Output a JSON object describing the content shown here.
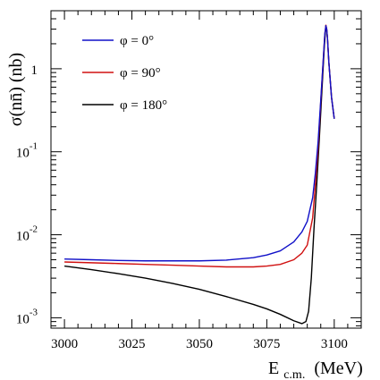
{
  "chart_data": {
    "type": "line",
    "xlabel": "E",
    "xlabel_sub": "c.m.",
    "xlabel_unit": "(MeV)",
    "ylabel": "σ(nn̄) (nb)",
    "xlim": [
      2995,
      3110
    ],
    "ylim": [
      0.00075,
      5
    ],
    "yscale": "log",
    "grid": false,
    "legend_position": "top-left",
    "x_ticks": [
      3000,
      3025,
      3050,
      3075,
      3100
    ],
    "y_ticks": [
      {
        "value": 1,
        "base": "1",
        "exp": ""
      },
      {
        "value": 0.1,
        "base": "10",
        "exp": "-1"
      },
      {
        "value": 0.01,
        "base": "10",
        "exp": "-2"
      },
      {
        "value": 0.001,
        "base": "10",
        "exp": "-3"
      }
    ],
    "series": [
      {
        "name": "φ = 0°",
        "color": "#1010c8",
        "x": [
          3000,
          3010,
          3020,
          3030,
          3040,
          3050,
          3060,
          3070,
          3075,
          3080,
          3085,
          3088,
          3090,
          3092,
          3093,
          3094,
          3095,
          3096,
          3096.5,
          3096.9,
          3097.2,
          3097.5,
          3098,
          3099,
          3100
        ],
        "y": [
          0.0051,
          0.005,
          0.0049,
          0.00485,
          0.00485,
          0.00485,
          0.00495,
          0.0053,
          0.0057,
          0.0064,
          0.0082,
          0.0108,
          0.0145,
          0.028,
          0.055,
          0.13,
          0.42,
          1.4,
          2.6,
          3.3,
          3.0,
          2.3,
          1.2,
          0.45,
          0.25
        ]
      },
      {
        "name": "φ = 90°",
        "color": "#d01010",
        "x": [
          3000,
          3010,
          3020,
          3030,
          3040,
          3050,
          3060,
          3070,
          3075,
          3080,
          3085,
          3088,
          3090,
          3092,
          3093,
          3094,
          3095,
          3096,
          3096.5,
          3096.9,
          3097.2,
          3097.5,
          3098,
          3099,
          3100
        ],
        "y": [
          0.0047,
          0.0046,
          0.0045,
          0.0044,
          0.0043,
          0.0042,
          0.0041,
          0.0041,
          0.0042,
          0.0044,
          0.005,
          0.006,
          0.0075,
          0.016,
          0.04,
          0.11,
          0.4,
          1.4,
          2.6,
          3.35,
          3.0,
          2.3,
          1.2,
          0.45,
          0.25
        ]
      },
      {
        "name": "φ = 180°",
        "color": "#000000",
        "x": [
          3000,
          3010,
          3020,
          3030,
          3040,
          3050,
          3060,
          3070,
          3075,
          3080,
          3085,
          3088,
          3089.5,
          3090.5,
          3091.5,
          3092.5,
          3093.5,
          3094.5,
          3095.5,
          3096.3,
          3096.9,
          3097.2,
          3097.5,
          3098,
          3099,
          3100
        ],
        "y": [
          0.0042,
          0.0038,
          0.0034,
          0.003,
          0.0026,
          0.0022,
          0.0018,
          0.00145,
          0.00128,
          0.0011,
          0.00092,
          0.00085,
          0.0009,
          0.0012,
          0.003,
          0.012,
          0.04,
          0.15,
          0.6,
          1.8,
          3.3,
          3.0,
          2.3,
          1.2,
          0.45,
          0.25
        ]
      }
    ]
  }
}
